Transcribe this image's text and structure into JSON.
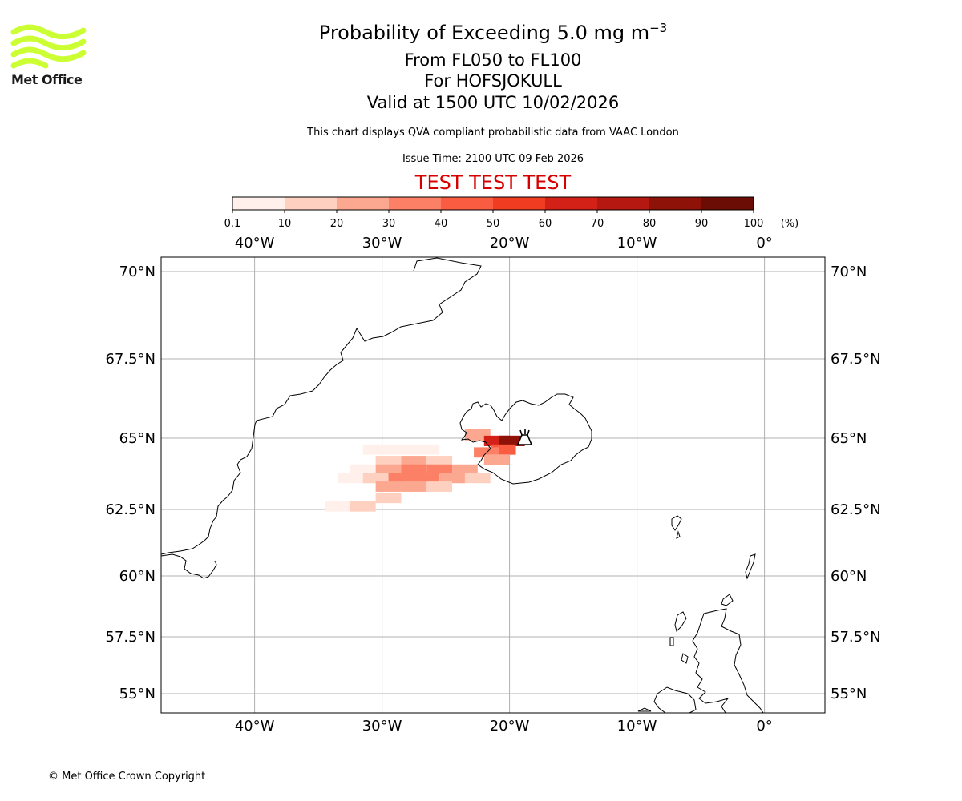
{
  "header": {
    "title_prefix": "Probability of Exceeding 5.0 mg m",
    "title_exponent": "−3",
    "line2": "From FL050 to FL100",
    "line3": "For HOFSJOKULL",
    "line4": "Valid at 1500 UTC 10/02/2026",
    "subtitle": "This chart displays QVA compliant probabilistic data from VAAC London",
    "issue_time": "Issue Time: 2100 UTC 09 Feb 2026",
    "test_banner": "TEST TEST TEST",
    "test_color": "#d60000"
  },
  "logo": {
    "text": "Met Office",
    "color": "#ccff33"
  },
  "footer": {
    "copyright": "© Met Office Crown Copyright"
  },
  "colorbar": {
    "ticks": [
      "0.1",
      "10",
      "20",
      "30",
      "40",
      "50",
      "60",
      "70",
      "80",
      "90",
      "100"
    ],
    "unit": "(%)",
    "colors": [
      "#fff0ec",
      "#fed0c0",
      "#fca891",
      "#fb8066",
      "#f95c40",
      "#f03d22",
      "#d42118",
      "#b51811",
      "#8f1208",
      "#6b0c05"
    ]
  },
  "map": {
    "lon_labels": [
      "40°W",
      "30°W",
      "20°W",
      "10°W",
      "0°"
    ],
    "lat_labels": [
      "70°N",
      "67.5°N",
      "65°N",
      "62.5°N",
      "60°N",
      "57.5°N",
      "55°N"
    ],
    "volcano": {
      "name": "HOFSJOKULL",
      "icon": "volcano-icon"
    }
  },
  "chart_data": {
    "type": "heatmap",
    "variable": "Probability of exceeding 5.0 mg m-3 ash concentration, FL050 to FL100 (%)",
    "lon_range": [
      -47.5,
      5
    ],
    "lat_range": [
      54.5,
      70.5
    ],
    "gridlines": true,
    "cells": [
      {
        "lon": -30.5,
        "lat": 64.6,
        "p": 5
      },
      {
        "lon": -28.5,
        "lat": 64.6,
        "p": 5
      },
      {
        "lon": -26.5,
        "lat": 64.6,
        "p": 5
      },
      {
        "lon": -29.5,
        "lat": 64.2,
        "p": 15
      },
      {
        "lon": -27.5,
        "lat": 64.2,
        "p": 25
      },
      {
        "lon": -25.5,
        "lat": 64.2,
        "p": 10
      },
      {
        "lon": -31.5,
        "lat": 63.9,
        "p": 8
      },
      {
        "lon": -29.5,
        "lat": 63.9,
        "p": 25
      },
      {
        "lon": -27.5,
        "lat": 63.9,
        "p": 35
      },
      {
        "lon": -25.5,
        "lat": 63.9,
        "p": 30
      },
      {
        "lon": -23.5,
        "lat": 63.9,
        "p": 20
      },
      {
        "lon": -32.5,
        "lat": 63.6,
        "p": 5
      },
      {
        "lon": -30.5,
        "lat": 63.6,
        "p": 15
      },
      {
        "lon": -28.5,
        "lat": 63.6,
        "p": 30
      },
      {
        "lon": -26.5,
        "lat": 63.6,
        "p": 35
      },
      {
        "lon": -24.5,
        "lat": 63.6,
        "p": 25
      },
      {
        "lon": -22.5,
        "lat": 63.6,
        "p": 15
      },
      {
        "lon": -29.5,
        "lat": 63.3,
        "p": 20
      },
      {
        "lon": -27.5,
        "lat": 63.3,
        "p": 20
      },
      {
        "lon": -25.5,
        "lat": 63.3,
        "p": 10
      },
      {
        "lon": -33.5,
        "lat": 62.6,
        "p": 5
      },
      {
        "lon": -31.5,
        "lat": 62.6,
        "p": 15
      },
      {
        "lon": -29.5,
        "lat": 62.9,
        "p": 10
      },
      {
        "lon": -22.5,
        "lat": 65.1,
        "p": 20
      },
      {
        "lon": -21.0,
        "lat": 64.9,
        "p": 65
      },
      {
        "lon": -19.8,
        "lat": 64.9,
        "p": 85
      },
      {
        "lon": -20.5,
        "lat": 64.6,
        "p": 45
      },
      {
        "lon": -21.8,
        "lat": 64.5,
        "p": 30
      },
      {
        "lon": -21.0,
        "lat": 64.25,
        "p": 20
      }
    ]
  }
}
